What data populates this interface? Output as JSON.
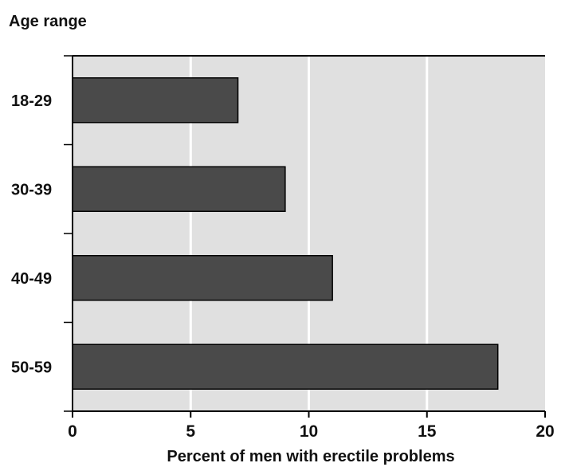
{
  "chart_data": {
    "type": "bar",
    "orientation": "horizontal",
    "title": "",
    "ylabel": "Age range",
    "xlabel": "Percent of men with erectile problems",
    "categories": [
      "18-29",
      "30-39",
      "40-49",
      "50-59"
    ],
    "values": [
      7,
      9,
      11,
      18
    ],
    "xlim": [
      0,
      20
    ],
    "xticks": [
      0,
      5,
      10,
      15,
      20
    ],
    "grid": "vertical",
    "legend": "none",
    "colors": {
      "bar": "#4a4a4a",
      "plot_background": "#e0e0e0",
      "gridline": "#ffffff",
      "axis": "#000000"
    }
  }
}
